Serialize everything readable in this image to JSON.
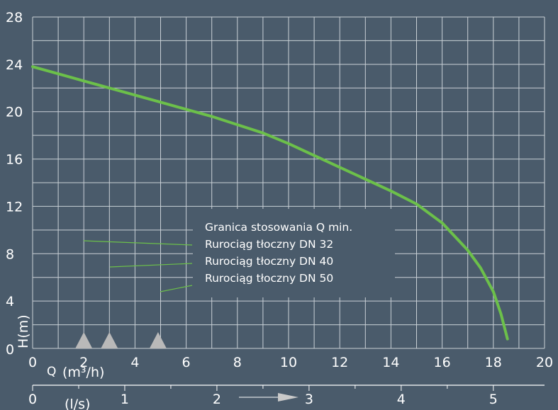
{
  "chart_data": {
    "type": "line",
    "xlabel": "Q",
    "xunit": "(m³/h)",
    "ylabel": "H(m)",
    "secondary_xunit": "(l/s)",
    "xlim": [
      0,
      20
    ],
    "ylim": [
      0,
      28
    ],
    "x_ticks": [
      "0",
      "2",
      "4",
      "6",
      "8",
      "10",
      "12",
      "14",
      "16",
      "18",
      "20"
    ],
    "y_ticks": [
      "0",
      "4",
      "8",
      "12",
      "16",
      "20",
      "24",
      "28"
    ],
    "secondary_x_ticks": [
      {
        "label": "0",
        "value": 0
      },
      {
        "label": "1",
        "value": 1
      },
      {
        "label": "2",
        "value": 2
      },
      {
        "label": "3",
        "value": 3
      },
      {
        "label": "4",
        "value": 4
      },
      {
        "label": "5",
        "value": 5
      }
    ],
    "grid": true,
    "series": [
      {
        "color": "#6cc04a",
        "points": [
          [
            0,
            23.8
          ],
          [
            1,
            23.2
          ],
          [
            2,
            22.6
          ],
          [
            3,
            22.0
          ],
          [
            4,
            21.4
          ],
          [
            5,
            20.8
          ],
          [
            6,
            20.2
          ],
          [
            7,
            19.6
          ],
          [
            8,
            18.9
          ],
          [
            9,
            18.2
          ],
          [
            10,
            17.3
          ],
          [
            11,
            16.3
          ],
          [
            12,
            15.3
          ],
          [
            13,
            14.3
          ],
          [
            14,
            13.3
          ],
          [
            15,
            12.2
          ],
          [
            16,
            10.6
          ],
          [
            17,
            8.3
          ],
          [
            17.5,
            6.8
          ],
          [
            18,
            4.8
          ],
          [
            18.3,
            2.9
          ],
          [
            18.55,
            0.8
          ]
        ]
      }
    ],
    "annotation_box": {
      "lines": [
        "Granica stosowania  Q min.",
        "Rurociąg tłoczny  DN 32",
        "Rurociąg tłoczny  DN 40",
        "Rurociąg tłoczny  DN 50"
      ]
    },
    "qmin_markers": [
      {
        "x": 2.0,
        "label": "DN 32"
      },
      {
        "x": 3.0,
        "label": "DN 40"
      },
      {
        "x": 4.9,
        "label": "DN 50"
      }
    ]
  }
}
